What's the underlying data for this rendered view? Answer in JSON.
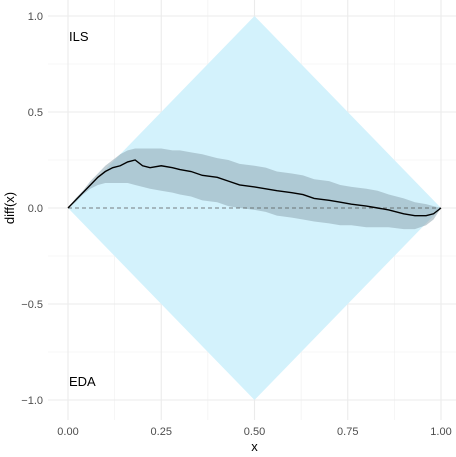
{
  "chart_data": {
    "type": "line",
    "title": "",
    "xlabel": "x",
    "ylabel": "diff(x)",
    "xlim": [
      0,
      1
    ],
    "ylim": [
      -1,
      1
    ],
    "x_ticks": [
      0,
      0.25,
      0.5,
      0.75,
      1
    ],
    "x_tick_labels": [
      "0.00",
      "0.25",
      "0.50",
      "0.75",
      "1.00"
    ],
    "y_ticks": [
      -1,
      -0.5,
      0,
      0.5,
      1
    ],
    "y_tick_labels": [
      "−1.0",
      "−0.5",
      "0.0",
      "0.5",
      "1.0"
    ],
    "grid": true,
    "annotations": {
      "top_left": "ILS",
      "bottom_left": "EDA"
    },
    "reference_region": {
      "type": "diamond",
      "vertices": [
        [
          0,
          0
        ],
        [
          0.5,
          1
        ],
        [
          1,
          0
        ],
        [
          0.5,
          -1
        ]
      ],
      "color": "#d3f2fc"
    },
    "reference_line": {
      "y": 0,
      "style": "dashed"
    },
    "ribbon_color": "#8fa8b3",
    "line_color": "#000000",
    "series": [
      {
        "x": [
          0,
          0.02,
          0.04,
          0.06,
          0.08,
          0.1,
          0.12,
          0.14,
          0.16,
          0.18,
          0.2,
          0.22,
          0.25,
          0.28,
          0.3,
          0.33,
          0.36,
          0.4,
          0.43,
          0.46,
          0.5,
          0.53,
          0.56,
          0.6,
          0.63,
          0.66,
          0.7,
          0.73,
          0.76,
          0.8,
          0.83,
          0.86,
          0.9,
          0.93,
          0.96,
          0.98,
          1.0
        ],
        "y": [
          0,
          0.04,
          0.08,
          0.12,
          0.16,
          0.19,
          0.21,
          0.22,
          0.24,
          0.25,
          0.22,
          0.21,
          0.22,
          0.21,
          0.2,
          0.19,
          0.17,
          0.16,
          0.14,
          0.12,
          0.11,
          0.1,
          0.09,
          0.08,
          0.07,
          0.05,
          0.04,
          0.03,
          0.02,
          0.01,
          0.0,
          -0.01,
          -0.03,
          -0.04,
          -0.04,
          -0.03,
          0.0
        ],
        "lower": [
          0,
          0.03,
          0.07,
          0.1,
          0.12,
          0.13,
          0.13,
          0.13,
          0.13,
          0.12,
          0.11,
          0.1,
          0.09,
          0.08,
          0.07,
          0.06,
          0.04,
          0.03,
          0.01,
          0.0,
          -0.01,
          -0.02,
          -0.04,
          -0.05,
          -0.06,
          -0.07,
          -0.08,
          -0.09,
          -0.09,
          -0.1,
          -0.1,
          -0.1,
          -0.11,
          -0.11,
          -0.09,
          -0.06,
          0.0
        ],
        "upper": [
          0,
          0.05,
          0.09,
          0.14,
          0.18,
          0.22,
          0.25,
          0.28,
          0.3,
          0.31,
          0.31,
          0.31,
          0.31,
          0.3,
          0.3,
          0.29,
          0.28,
          0.26,
          0.25,
          0.23,
          0.22,
          0.21,
          0.19,
          0.18,
          0.17,
          0.15,
          0.14,
          0.12,
          0.11,
          0.1,
          0.09,
          0.07,
          0.05,
          0.03,
          0.02,
          0.01,
          0.0
        ]
      }
    ]
  }
}
